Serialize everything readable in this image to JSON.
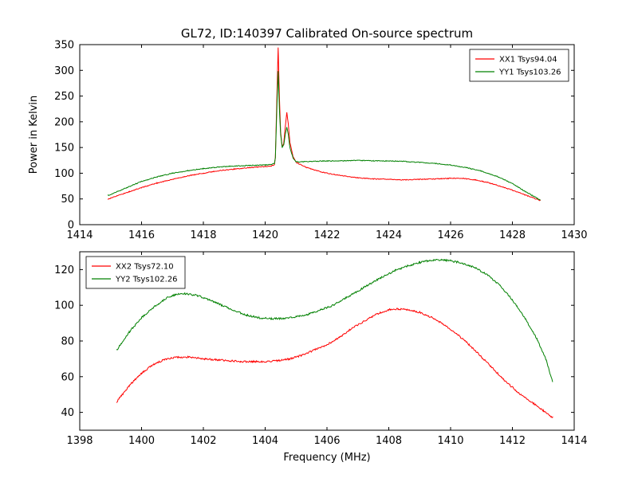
{
  "figure": {
    "background": "#ffffff",
    "frame_color": "#000000"
  },
  "chart_data": [
    {
      "type": "line",
      "title": "GL72, ID:140397 Calibrated On-source spectrum",
      "xlabel": "",
      "ylabel": "Power in Kelvin",
      "xlim": [
        1414,
        1430
      ],
      "ylim": [
        0,
        350
      ],
      "xticks": [
        1414,
        1416,
        1418,
        1420,
        1422,
        1424,
        1426,
        1428,
        1430
      ],
      "yticks": [
        0,
        50,
        100,
        150,
        200,
        250,
        300,
        350
      ],
      "grid": false,
      "legend": "upper-right",
      "series": [
        {
          "name": "XX1 Tsys94.04",
          "color": "#ff0000",
          "noise": 0.8,
          "points": [
            [
              1414.92,
              50
            ],
            [
              1415.2,
              56
            ],
            [
              1415.6,
              64
            ],
            [
              1416.0,
              72
            ],
            [
              1416.5,
              81
            ],
            [
              1417.0,
              88
            ],
            [
              1417.5,
              95
            ],
            [
              1418.0,
              100
            ],
            [
              1418.5,
              105
            ],
            [
              1419.0,
              108
            ],
            [
              1419.5,
              111
            ],
            [
              1420.0,
              113
            ],
            [
              1420.2,
              114
            ],
            [
              1420.3,
              117
            ],
            [
              1420.33,
              130
            ],
            [
              1420.38,
              250
            ],
            [
              1420.42,
              345
            ],
            [
              1420.46,
              250
            ],
            [
              1420.5,
              180
            ],
            [
              1420.55,
              152
            ],
            [
              1420.6,
              158
            ],
            [
              1420.65,
              190
            ],
            [
              1420.7,
              218
            ],
            [
              1420.75,
              195
            ],
            [
              1420.8,
              160
            ],
            [
              1420.9,
              133
            ],
            [
              1421.0,
              121
            ],
            [
              1421.3,
              112
            ],
            [
              1421.6,
              106
            ],
            [
              1422.0,
              100
            ],
            [
              1422.5,
              95
            ],
            [
              1423.0,
              91
            ],
            [
              1423.5,
              89
            ],
            [
              1424.0,
              88
            ],
            [
              1424.5,
              87
            ],
            [
              1425.0,
              88
            ],
            [
              1425.5,
              89
            ],
            [
              1426.0,
              90
            ],
            [
              1426.4,
              90
            ],
            [
              1426.8,
              87
            ],
            [
              1427.2,
              82
            ],
            [
              1427.6,
              75
            ],
            [
              1428.0,
              67
            ],
            [
              1428.4,
              58
            ],
            [
              1428.9,
              47
            ]
          ]
        },
        {
          "name": "YY1 Tsys103.26",
          "color": "#008000",
          "noise": 0.8,
          "points": [
            [
              1414.92,
              57
            ],
            [
              1415.2,
              64
            ],
            [
              1415.6,
              74
            ],
            [
              1416.0,
              84
            ],
            [
              1416.5,
              93
            ],
            [
              1417.0,
              100
            ],
            [
              1417.5,
              105
            ],
            [
              1418.0,
              109
            ],
            [
              1418.5,
              112
            ],
            [
              1419.0,
              114
            ],
            [
              1419.5,
              115
            ],
            [
              1420.0,
              116
            ],
            [
              1420.2,
              117
            ],
            [
              1420.3,
              119
            ],
            [
              1420.33,
              130
            ],
            [
              1420.38,
              230
            ],
            [
              1420.42,
              298
            ],
            [
              1420.46,
              225
            ],
            [
              1420.5,
              175
            ],
            [
              1420.55,
              150
            ],
            [
              1420.6,
              155
            ],
            [
              1420.65,
              175
            ],
            [
              1420.7,
              190
            ],
            [
              1420.75,
              175
            ],
            [
              1420.8,
              150
            ],
            [
              1420.9,
              130
            ],
            [
              1421.0,
              122
            ],
            [
              1421.5,
              123
            ],
            [
              1422.0,
              124
            ],
            [
              1422.5,
              124
            ],
            [
              1423.0,
              125
            ],
            [
              1423.5,
              124
            ],
            [
              1424.0,
              124
            ],
            [
              1424.5,
              123
            ],
            [
              1425.0,
              121
            ],
            [
              1425.5,
              119
            ],
            [
              1426.0,
              116
            ],
            [
              1426.5,
              111
            ],
            [
              1427.0,
              104
            ],
            [
              1427.5,
              94
            ],
            [
              1428.0,
              80
            ],
            [
              1428.4,
              65
            ],
            [
              1428.9,
              48
            ]
          ]
        }
      ]
    },
    {
      "type": "line",
      "title": "",
      "xlabel": "Frequency (MHz)",
      "ylabel": "",
      "xlim": [
        1398,
        1414
      ],
      "ylim": [
        30,
        130
      ],
      "xticks": [
        1398,
        1400,
        1402,
        1404,
        1406,
        1408,
        1410,
        1412,
        1414
      ],
      "yticks": [
        40,
        60,
        80,
        100,
        120
      ],
      "grid": false,
      "legend": "upper-left",
      "series": [
        {
          "name": "XX2 Tsys72.10",
          "color": "#ff0000",
          "noise": 0.5,
          "points": [
            [
              1399.2,
              46
            ],
            [
              1399.6,
              55
            ],
            [
              1400.0,
              62
            ],
            [
              1400.4,
              67
            ],
            [
              1400.8,
              70
            ],
            [
              1401.2,
              71
            ],
            [
              1401.6,
              71
            ],
            [
              1402.0,
              70
            ],
            [
              1402.4,
              69.5
            ],
            [
              1402.8,
              69
            ],
            [
              1403.2,
              68.5
            ],
            [
              1403.6,
              68.5
            ],
            [
              1404.0,
              68.5
            ],
            [
              1404.4,
              69
            ],
            [
              1404.8,
              70
            ],
            [
              1405.2,
              72
            ],
            [
              1405.6,
              75
            ],
            [
              1406.0,
              78
            ],
            [
              1406.4,
              82
            ],
            [
              1406.8,
              87
            ],
            [
              1407.2,
              91
            ],
            [
              1407.6,
              95
            ],
            [
              1408.0,
              97.5
            ],
            [
              1408.3,
              98
            ],
            [
              1408.6,
              97.5
            ],
            [
              1409.0,
              96
            ],
            [
              1409.4,
              93
            ],
            [
              1409.8,
              89
            ],
            [
              1410.2,
              84
            ],
            [
              1410.6,
              78
            ],
            [
              1411.0,
              71
            ],
            [
              1411.4,
              64
            ],
            [
              1411.8,
              57
            ],
            [
              1412.2,
              51
            ],
            [
              1412.6,
              46
            ],
            [
              1413.0,
              41
            ],
            [
              1413.3,
              37
            ]
          ]
        },
        {
          "name": "YY2 Tsys102.26",
          "color": "#008000",
          "noise": 0.5,
          "points": [
            [
              1399.2,
              75
            ],
            [
              1399.6,
              85
            ],
            [
              1400.0,
              93
            ],
            [
              1400.4,
              99
            ],
            [
              1400.8,
              104
            ],
            [
              1401.1,
              106
            ],
            [
              1401.4,
              106.5
            ],
            [
              1401.8,
              105.5
            ],
            [
              1402.2,
              103
            ],
            [
              1402.6,
              100
            ],
            [
              1403.0,
              97
            ],
            [
              1403.4,
              94.5
            ],
            [
              1403.8,
              93
            ],
            [
              1404.2,
              92.5
            ],
            [
              1404.6,
              92.5
            ],
            [
              1405.0,
              93.5
            ],
            [
              1405.4,
              95
            ],
            [
              1405.8,
              97.5
            ],
            [
              1406.2,
              100
            ],
            [
              1406.6,
              104
            ],
            [
              1407.0,
              108
            ],
            [
              1407.4,
              112
            ],
            [
              1407.8,
              116
            ],
            [
              1408.2,
              119.5
            ],
            [
              1408.6,
              122
            ],
            [
              1409.0,
              124
            ],
            [
              1409.3,
              125
            ],
            [
              1409.6,
              125.5
            ],
            [
              1410.0,
              125
            ],
            [
              1410.4,
              123.5
            ],
            [
              1410.8,
              121
            ],
            [
              1411.2,
              117
            ],
            [
              1411.6,
              111
            ],
            [
              1412.0,
              103
            ],
            [
              1412.4,
              93
            ],
            [
              1412.8,
              81
            ],
            [
              1413.1,
              69
            ],
            [
              1413.3,
              57
            ]
          ]
        }
      ]
    }
  ]
}
